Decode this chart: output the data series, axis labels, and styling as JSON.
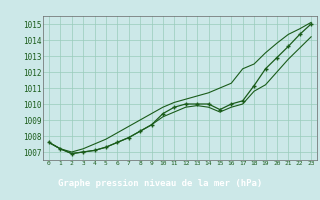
{
  "title": "Graphe pression niveau de la mer (hPa)",
  "x_hours": [
    0,
    1,
    2,
    3,
    4,
    5,
    6,
    7,
    8,
    9,
    10,
    11,
    12,
    13,
    14,
    15,
    16,
    17,
    18,
    19,
    20,
    21,
    22,
    23
  ],
  "line_main": [
    1007.6,
    1007.2,
    1006.9,
    1007.0,
    1007.1,
    1007.3,
    1007.6,
    1007.9,
    1008.3,
    1008.7,
    1009.4,
    1009.8,
    1010.0,
    1010.0,
    1010.0,
    1009.65,
    1010.0,
    1010.2,
    1011.15,
    1012.2,
    1012.9,
    1013.6,
    1014.35,
    1015.0
  ],
  "line_upper": [
    1007.6,
    1007.2,
    1007.0,
    1007.2,
    1007.5,
    1007.8,
    1008.2,
    1008.6,
    1009.0,
    1009.4,
    1009.8,
    1010.1,
    1010.3,
    1010.5,
    1010.7,
    1011.0,
    1011.3,
    1012.2,
    1012.5,
    1013.2,
    1013.8,
    1014.35,
    1014.7,
    1015.1
  ],
  "line_lower": [
    1007.6,
    1007.2,
    1006.9,
    1007.0,
    1007.1,
    1007.3,
    1007.6,
    1007.9,
    1008.3,
    1008.7,
    1009.2,
    1009.5,
    1009.8,
    1009.9,
    1009.8,
    1009.5,
    1009.8,
    1010.0,
    1010.8,
    1011.2,
    1012.0,
    1012.8,
    1013.5,
    1014.2
  ],
  "ylim": [
    1006.5,
    1015.5
  ],
  "yticks": [
    1007,
    1008,
    1009,
    1010,
    1011,
    1012,
    1013,
    1014,
    1015
  ],
  "xlim": [
    -0.5,
    23.5
  ],
  "bg_color": "#cce8e8",
  "grid_color": "#99ccbb",
  "line_color": "#1a5c1a",
  "marker_color": "#1a5c1a",
  "title_color": "#ffffff",
  "title_bg_color": "#336633",
  "axis_tick_color": "#1a5c1a",
  "figsize": [
    3.2,
    2.0
  ],
  "dpi": 100
}
